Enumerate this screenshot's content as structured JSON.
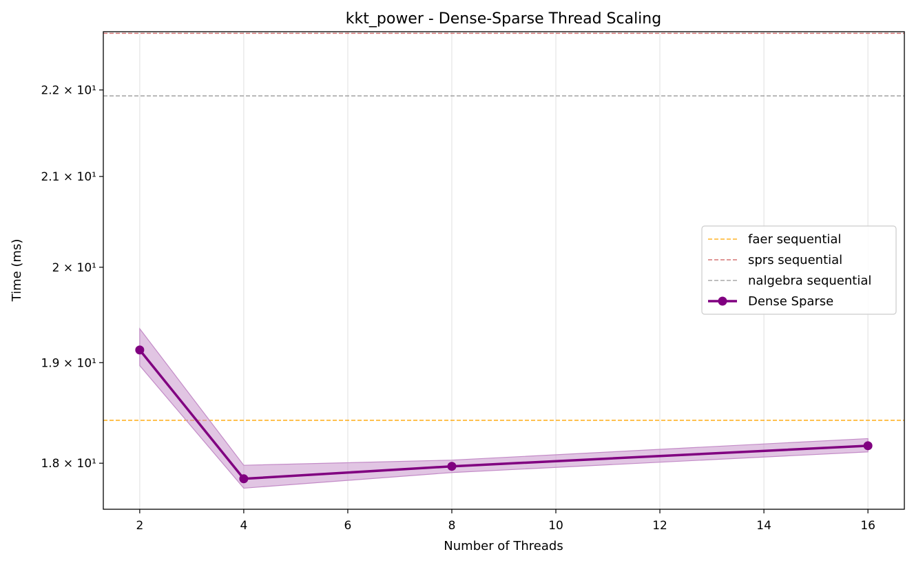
{
  "chart_data": {
    "type": "line",
    "title": "kkt_power - Dense-Sparse Thread Scaling",
    "xlabel": "Number of Threads",
    "ylabel": "Time (ms)",
    "yscale": "log",
    "xlim": [
      1.3,
      16.7
    ],
    "ylim": [
      17.56,
      22.7
    ],
    "x_ticks": [
      2,
      4,
      6,
      8,
      10,
      12,
      14,
      16
    ],
    "y_ticks": [
      {
        "value": 18,
        "label": "1.8 × 10¹"
      },
      {
        "value": 19,
        "label": "1.9 × 10¹"
      },
      {
        "value": 20,
        "label": "2 × 10¹"
      },
      {
        "value": 21,
        "label": "2.1 × 10¹"
      },
      {
        "value": 22,
        "label": "2.2 × 10¹"
      }
    ],
    "grid": "vertical",
    "legend_position": "center-right",
    "reference_lines": [
      {
        "name": "faer sequential",
        "y": 18.42,
        "color": "#FFA500"
      },
      {
        "name": "sprs sequential",
        "y": 22.68,
        "color": "#CD5C5C"
      },
      {
        "name": "nalgebra sequential",
        "y": 21.93,
        "color": "#999999"
      }
    ],
    "series": [
      {
        "name": "Dense Sparse",
        "color": "#800080",
        "band_color": "#C38BC7",
        "x": [
          2,
          4,
          8,
          16
        ],
        "y": [
          19.13,
          17.85,
          17.97,
          18.17
        ],
        "lower": [
          18.97,
          17.76,
          17.91,
          18.11
        ],
        "upper": [
          19.35,
          17.98,
          18.03,
          18.24
        ]
      }
    ]
  }
}
